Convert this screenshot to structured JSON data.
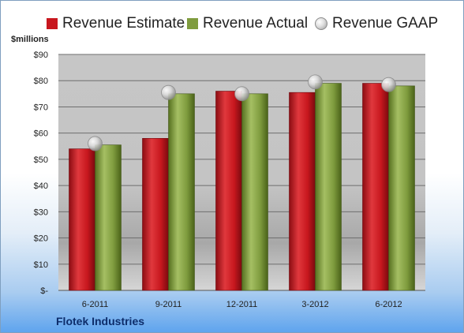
{
  "chart_data": {
    "type": "bar",
    "categories": [
      "6-2011",
      "9-2011",
      "12-2011",
      "3-2012",
      "6-2012"
    ],
    "series": [
      {
        "name": "Revenue Estimate",
        "values": [
          54,
          58,
          76,
          75.5,
          79
        ],
        "color": "#c8171e"
      },
      {
        "name": "Revenue Actual",
        "values": [
          55.5,
          75,
          75,
          79,
          78
        ],
        "color": "#7f9c3e"
      },
      {
        "name": "Revenue GAAP",
        "values": [
          56,
          75.5,
          75,
          79.5,
          78.5
        ],
        "color": "#c0c0c0",
        "marker": "sphere"
      }
    ],
    "ylabel": "$millions",
    "ylim": [
      0,
      90
    ],
    "yticks": [
      0,
      10,
      20,
      30,
      40,
      50,
      60,
      70,
      80,
      90
    ],
    "ytick_labels": [
      "$-",
      "$10",
      "$20",
      "$30",
      "$40",
      "$50",
      "$60",
      "$70",
      "$80",
      "$90"
    ],
    "grid": true,
    "legend_position": "top"
  },
  "company_name": "Flotek Industries"
}
